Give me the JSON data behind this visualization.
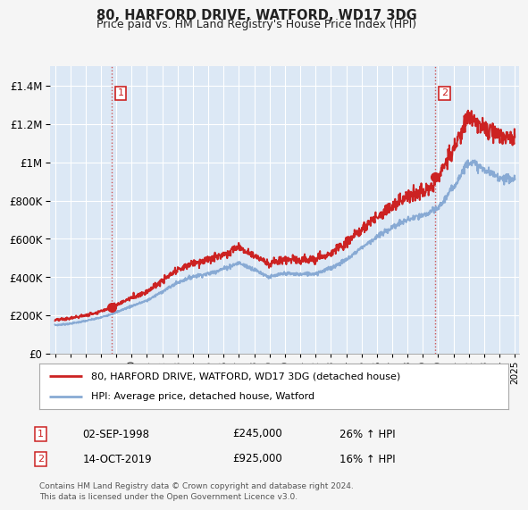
{
  "title": "80, HARFORD DRIVE, WATFORD, WD17 3DG",
  "subtitle": "Price paid vs. HM Land Registry's House Price Index (HPI)",
  "footer": "Contains HM Land Registry data © Crown copyright and database right 2024.\nThis data is licensed under the Open Government Licence v3.0.",
  "legend_line1": "80, HARFORD DRIVE, WATFORD, WD17 3DG (detached house)",
  "legend_line2": "HPI: Average price, detached house, Watford",
  "annotation1": {
    "num": "1",
    "date": "02-SEP-1998",
    "price": "£245,000",
    "hpi": "26% ↑ HPI"
  },
  "annotation2": {
    "num": "2",
    "date": "14-OCT-2019",
    "price": "£925,000",
    "hpi": "16% ↑ HPI"
  },
  "vline1_x": 1998.67,
  "vline2_x": 2019.79,
  "sale1_x": 1998.67,
  "sale1_y": 245000,
  "sale2_x": 2019.79,
  "sale2_y": 925000,
  "ylim": [
    0,
    1500000
  ],
  "xlim": [
    1994.7,
    2025.3
  ],
  "red_color": "#cc2222",
  "blue_color": "#88aad4",
  "vline_color": "#cc4444",
  "chart_bg": "#dce8f5",
  "background_color": "#f5f5f5",
  "grid_color": "#ffffff"
}
